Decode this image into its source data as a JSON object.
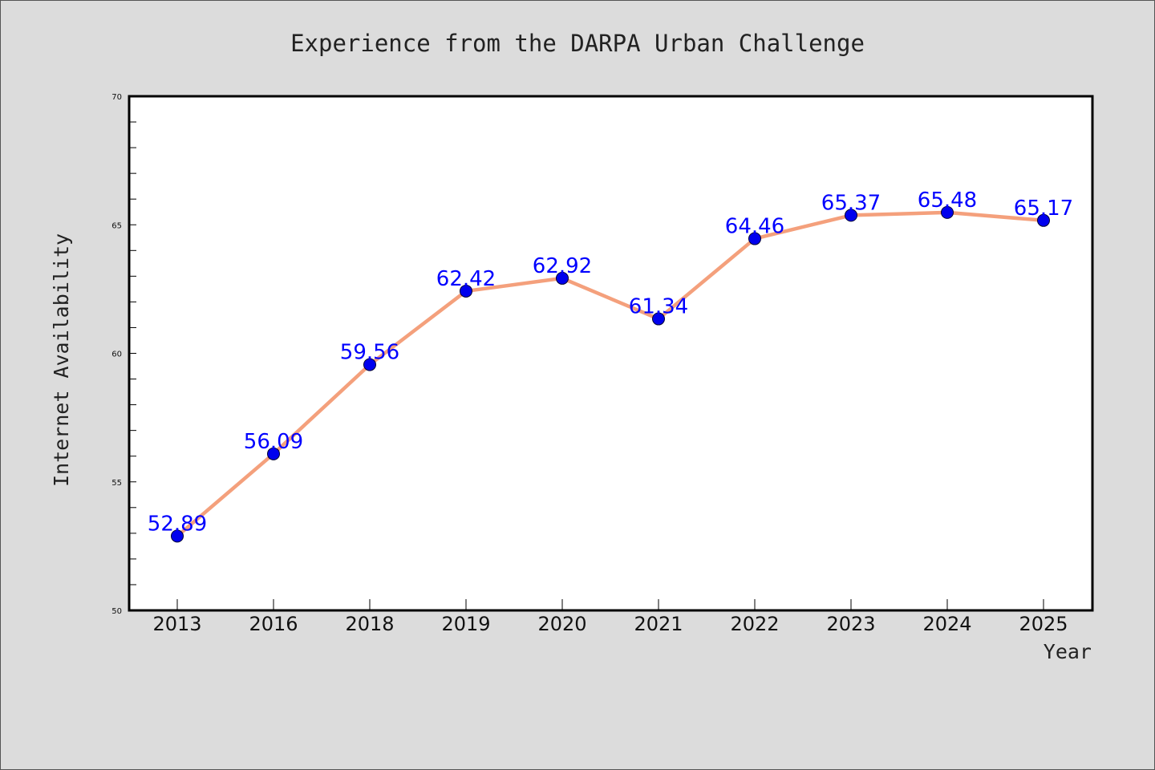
{
  "chart_data": {
    "type": "line",
    "title": "Experience from the DARPA Urban Challenge",
    "xlabel": "Year",
    "ylabel": "Internet Availability",
    "categories": [
      "2013",
      "2016",
      "2018",
      "2019",
      "2020",
      "2021",
      "2022",
      "2023",
      "2024",
      "2025"
    ],
    "series": [
      {
        "values": [
          52.89,
          56.09,
          59.56,
          62.42,
          62.92,
          61.34,
          64.46,
          65.37,
          65.48,
          65.17
        ]
      }
    ],
    "data_labels": [
      "52.89",
      "56.09",
      "59.56",
      "62.42",
      "62.92",
      "61.34",
      "64.46",
      "65.37",
      "65.48",
      "65.17"
    ],
    "ylim": [
      50,
      70
    ],
    "yticks": [
      "50",
      "55",
      "60",
      "65",
      "70"
    ],
    "grid": false,
    "legend": "none",
    "colors": {
      "line": "#f4a07c",
      "marker": "#0000ee",
      "label": "#0000ff",
      "plot_bg": "#ffffff",
      "figure_bg": "#dcdcdc"
    }
  }
}
